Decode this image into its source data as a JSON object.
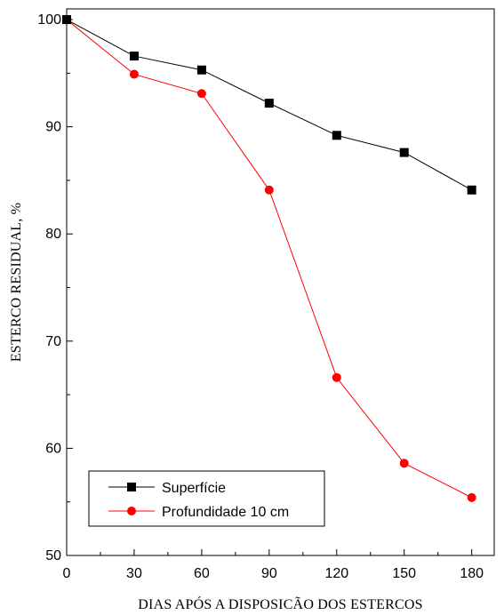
{
  "chart_data": {
    "type": "line",
    "title": "",
    "xlabel": "DIAS APÓS A DISPOSICÃO DOS ESTERCOS",
    "ylabel": "ESTERCO RESIDUAL, %",
    "xlim": [
      0,
      190
    ],
    "ylim": [
      50,
      101
    ],
    "xticks": [
      0,
      30,
      60,
      90,
      120,
      150,
      180
    ],
    "yticks": [
      50,
      60,
      70,
      80,
      90,
      100
    ],
    "x": [
      0,
      30,
      60,
      90,
      120,
      150,
      180
    ],
    "grid": false,
    "legend_position": "bottom-left",
    "series": [
      {
        "name": "Superfície",
        "values": [
          100,
          96.6,
          95.3,
          92.2,
          89.2,
          87.6,
          84.1
        ],
        "color": "#000000",
        "marker": "square"
      },
      {
        "name": "Profundidade 10 cm",
        "values": [
          100,
          94.9,
          93.1,
          84.1,
          66.6,
          58.6,
          55.4
        ],
        "color": "#ff0000",
        "marker": "circle"
      }
    ]
  }
}
